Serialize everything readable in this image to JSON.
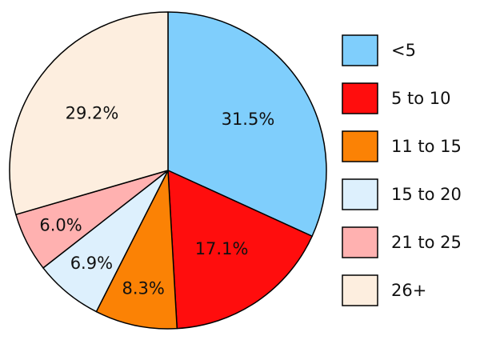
{
  "chart_data": {
    "type": "pie",
    "categories": [
      "<5",
      "5 to 10",
      "11 to 15",
      "15 to 20",
      "21 to 25",
      "26+"
    ],
    "values": [
      31.5,
      17.1,
      8.3,
      6.9,
      6.0,
      29.2
    ],
    "value_labels": [
      "31.5%",
      "17.1%",
      "8.3%",
      "6.9%",
      "6.0%",
      "29.2%"
    ],
    "colors": [
      "#7fcefc",
      "#ff0d0d",
      "#fb8205",
      "#ddf0fd",
      "#ffb1b0",
      "#fdeedf"
    ],
    "start": "top, clockwise",
    "legend": "right"
  }
}
